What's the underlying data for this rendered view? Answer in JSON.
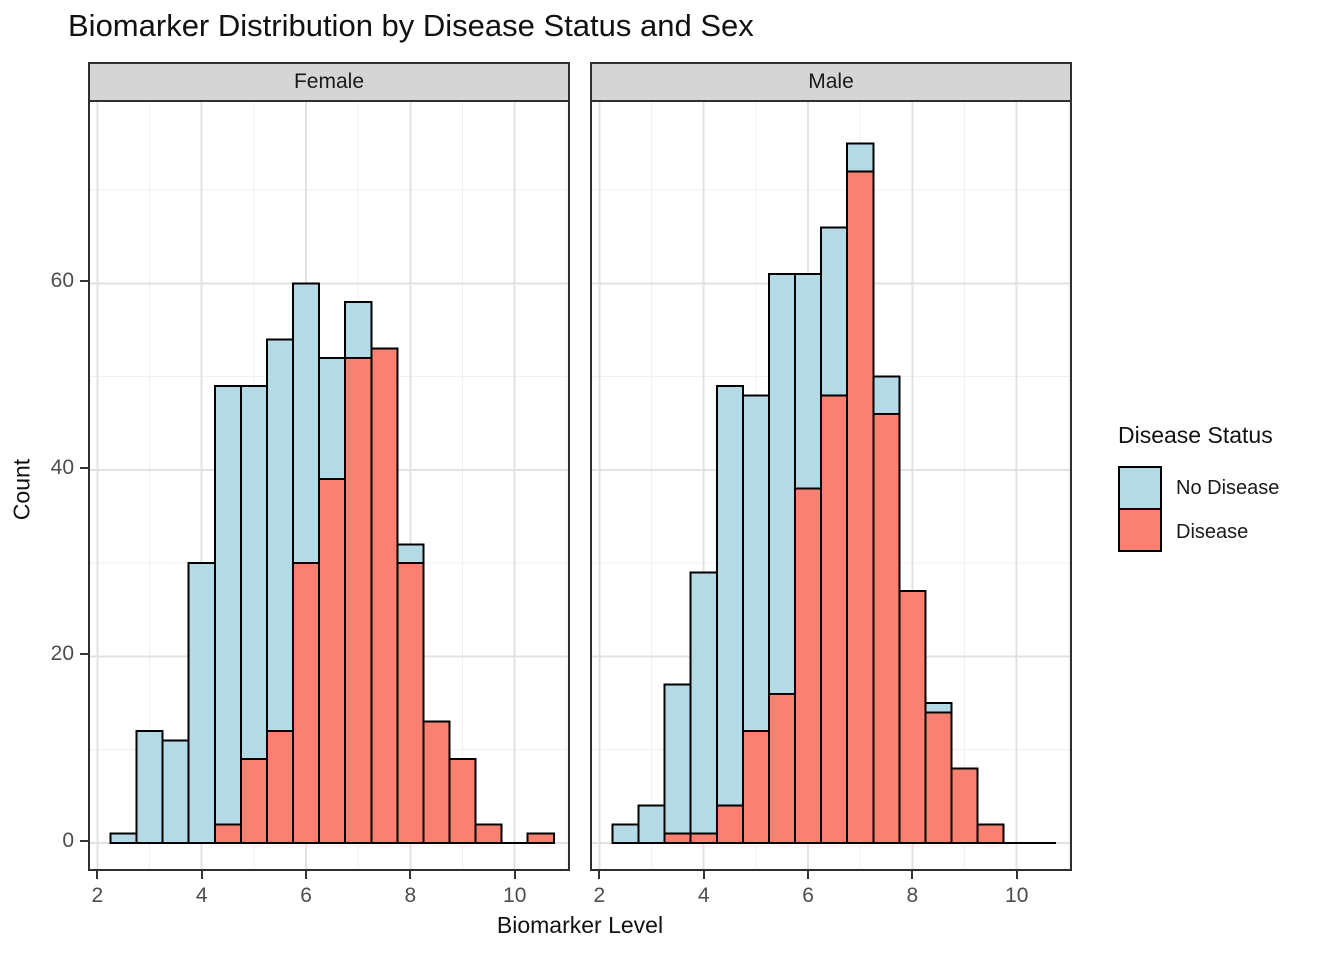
{
  "title": "Biomarker Distribution by Disease Status and Sex",
  "colors": {
    "no_disease": "#B4DAE5",
    "disease": "#FA8072",
    "bar_stroke": "#000000",
    "strip_bg": "#D5D5D5",
    "panel_border": "#2f2f2f",
    "grid_major": "#E2E2E2",
    "grid_minor": "#F0F0F0",
    "tick_label": "#4d4d4d"
  },
  "legend": {
    "title": "Disease Status",
    "items": [
      {
        "label": "No Disease",
        "color_key": "no_disease"
      },
      {
        "label": "Disease",
        "color_key": "disease"
      }
    ]
  },
  "chart_data": {
    "type": "bar",
    "subtype": "overlaid-histogram-faceted",
    "title": "Biomarker Distribution by Disease Status and Sex",
    "xlabel": "Biomarker Level",
    "ylabel": "Count",
    "legend_position": "right",
    "grid": true,
    "bin_width": 0.5,
    "xlim": [
      1.82,
      11.06
    ],
    "ylim": [
      0,
      79
    ],
    "x_ticks": [
      2,
      4,
      6,
      8,
      10
    ],
    "x_ticks_minor": [
      3,
      5,
      7,
      9,
      11
    ],
    "y_ticks": [
      0,
      20,
      40,
      60
    ],
    "y_ticks_minor": [
      10,
      30,
      50,
      70
    ],
    "bins_start": [
      2.25,
      2.75,
      3.25,
      3.75,
      4.25,
      4.75,
      5.25,
      5.75,
      6.25,
      6.75,
      7.25,
      7.75,
      8.25,
      8.75,
      9.25,
      9.75,
      10.25
    ],
    "facets": [
      {
        "label": "Female",
        "series": [
          {
            "name": "No Disease",
            "values": [
              1,
              12,
              11,
              30,
              49,
              49,
              54,
              60,
              52,
              58,
              null,
              32,
              null,
              null,
              null,
              0,
              null
            ]
          },
          {
            "name": "Disease",
            "values": [
              null,
              null,
              null,
              null,
              2,
              9,
              12,
              30,
              39,
              52,
              53,
              30,
              13,
              9,
              2,
              0,
              1
            ]
          }
        ]
      },
      {
        "label": "Male",
        "series": [
          {
            "name": "No Disease",
            "values": [
              2,
              4,
              17,
              29,
              49,
              48,
              61,
              61,
              66,
              75,
              50,
              null,
              15,
              null,
              null,
              0,
              0
            ]
          },
          {
            "name": "Disease",
            "values": [
              null,
              null,
              1,
              1,
              4,
              12,
              16,
              38,
              48,
              72,
              46,
              27,
              14,
              8,
              2,
              0,
              0
            ]
          }
        ]
      }
    ]
  }
}
